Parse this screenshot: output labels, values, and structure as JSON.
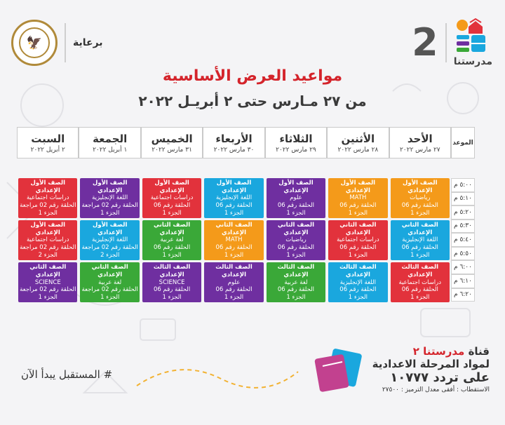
{
  "header": {
    "sponsor_text": "برعاية",
    "brand_number": "2",
    "brand_name": "مدرستنا"
  },
  "title": "مواعيد العرض الأساسية",
  "subtitle": "من ٢٧ مـارس حتى ٢ أبريـل ٢٠٢٢",
  "schedule": {
    "time_header": "الموعد",
    "days": [
      {
        "name": "الأحد",
        "date": "٢٧ مارس ٢٠٢٢"
      },
      {
        "name": "الأثنين",
        "date": "٢٨ مارس ٢٠٢٢"
      },
      {
        "name": "الثلاثاء",
        "date": "٢٩ مارس ٢٠٢٢"
      },
      {
        "name": "الأربعاء",
        "date": "٣٠ مارس ٢٠٢٢"
      },
      {
        "name": "الخميس",
        "date": "٣١ مارس ٢٠٢٢"
      },
      {
        "name": "الجمعة",
        "date": "١ أبريل ٢٠٢٢"
      },
      {
        "name": "السبت",
        "date": "٢ أبريل ٢٠٢٢"
      }
    ],
    "times": [
      "٥:٠٠ م",
      "٥:١٠ م",
      "٥:٢٠ م",
      "٥:٣٠ م",
      "٥:٤٠ م",
      "٥:٥٠ م",
      "٦:٠٠ م",
      "٦:١٠ م",
      "٦:٢٠ م"
    ],
    "colors": {
      "orange": "#f49a1a",
      "red": "#e2323c",
      "blue": "#1aa7de",
      "purple": "#6f2fa0",
      "green": "#3aa838"
    },
    "blocks": [
      [
        {
          "color": "orange",
          "lines": [
            "الصف الأول الإعدادي",
            "رياضيات",
            "الحلقة رقم 06",
            "الجزء 1"
          ]
        },
        {
          "color": "blue",
          "lines": [
            "الصف الثاني الإعدادي",
            "اللغة الإنجليزية",
            "الحلقة رقم 06",
            "الجزء 1"
          ]
        },
        {
          "color": "red",
          "lines": [
            "الصف الثالث الإعدادي",
            "دراسات اجتماعية",
            "الحلقة رقم 06",
            "الجزء 1"
          ]
        }
      ],
      [
        {
          "color": "orange",
          "lines": [
            "الصف الأول الإعدادي",
            "MATH",
            "الحلقة رقم 06",
            "الجزء 1"
          ]
        },
        {
          "color": "red",
          "lines": [
            "الصف الثاني الإعدادي",
            "دراسات اجتماعية",
            "الحلقة رقم 06",
            "الجزء 1"
          ]
        },
        {
          "color": "blue",
          "lines": [
            "الصف الثالث الإعدادي",
            "اللغة الإنجليزية",
            "الحلقة رقم 06",
            "الجزء 1"
          ]
        }
      ],
      [
        {
          "color": "purple",
          "lines": [
            "الصف الأول الإعدادي",
            "علوم",
            "الحلقة رقم 06",
            "الجزء 1"
          ]
        },
        {
          "color": "purple",
          "lines": [
            "الصف الثاني الإعدادي",
            "رياضيات",
            "الحلقة رقم 06",
            "الجزء 1"
          ]
        },
        {
          "color": "green",
          "lines": [
            "الصف الثالث الإعدادي",
            "لغة عربية",
            "الحلقة رقم 06",
            "الجزء 1"
          ]
        }
      ],
      [
        {
          "color": "blue",
          "lines": [
            "الصف الأول الإعدادي",
            "اللغة الإنجليزية",
            "الحلقة رقم 06",
            "الجزء 1"
          ]
        },
        {
          "color": "orange",
          "lines": [
            "الصف الثاني الإعدادي",
            "MATH",
            "الحلقة رقم 06",
            "الجزء 1"
          ]
        },
        {
          "color": "purple",
          "lines": [
            "الصف الثالث الإعدادي",
            "علوم",
            "الحلقة رقم 06",
            "الجزء 1"
          ]
        }
      ],
      [
        {
          "color": "red",
          "lines": [
            "الصف الأول الإعدادي",
            "دراسات اجتماعية",
            "الحلقة رقم 06",
            "الجزء 1"
          ]
        },
        {
          "color": "green",
          "lines": [
            "الصف الثاني الإعدادي",
            "لغة عربية",
            "الحلقة رقم 06",
            "الجزء 1"
          ]
        },
        {
          "color": "purple",
          "lines": [
            "الصف الثالث الإعدادي",
            "SCIENCE",
            "الحلقة رقم 06",
            "الجزء 1"
          ]
        }
      ],
      [
        {
          "color": "purple",
          "lines": [
            "الصف الأول الإعدادي",
            "اللغة الإنجليزية",
            "الحلقة رقم 02 مراجعة",
            "الجزء 1"
          ]
        },
        {
          "color": "blue",
          "lines": [
            "الصف الأول الإعدادي",
            "اللغة الإنجليزية",
            "الحلقة رقم 02 مراجعة",
            "الجزء 2"
          ]
        },
        {
          "color": "green",
          "lines": [
            "الصف الثاني الإعدادي",
            "لغة عربية",
            "الحلقة رقم 02 مراجعة",
            "الجزء 1"
          ]
        }
      ],
      [
        {
          "color": "red",
          "lines": [
            "الصف الأول الإعدادي",
            "دراسات اجتماعية",
            "الحلقة رقم 02 مراجعة",
            "الجزء 1"
          ]
        },
        {
          "color": "red",
          "lines": [
            "الصف الأول الإعدادي",
            "دراسات اجتماعية",
            "الحلقة رقم 02 مراجعة",
            "الجزء 2"
          ]
        },
        {
          "color": "purple",
          "lines": [
            "الصف الثاني الإعدادي",
            "SCIENCE",
            "الحلقة رقم 02 مراجعة",
            "الجزء 1"
          ]
        }
      ]
    ]
  },
  "footer": {
    "channel_prefix": "قناة",
    "channel_name": "مدرستنا ٢",
    "line2": "لمواد المرحلة الاعدادية",
    "line3": "على تردد ١٠٧٧٧",
    "line4": "الاستقطاب : أفقى معدل الترميز : ٢٧٥٠٠",
    "hashtag": "# المستقبل يبدأ الآن"
  }
}
